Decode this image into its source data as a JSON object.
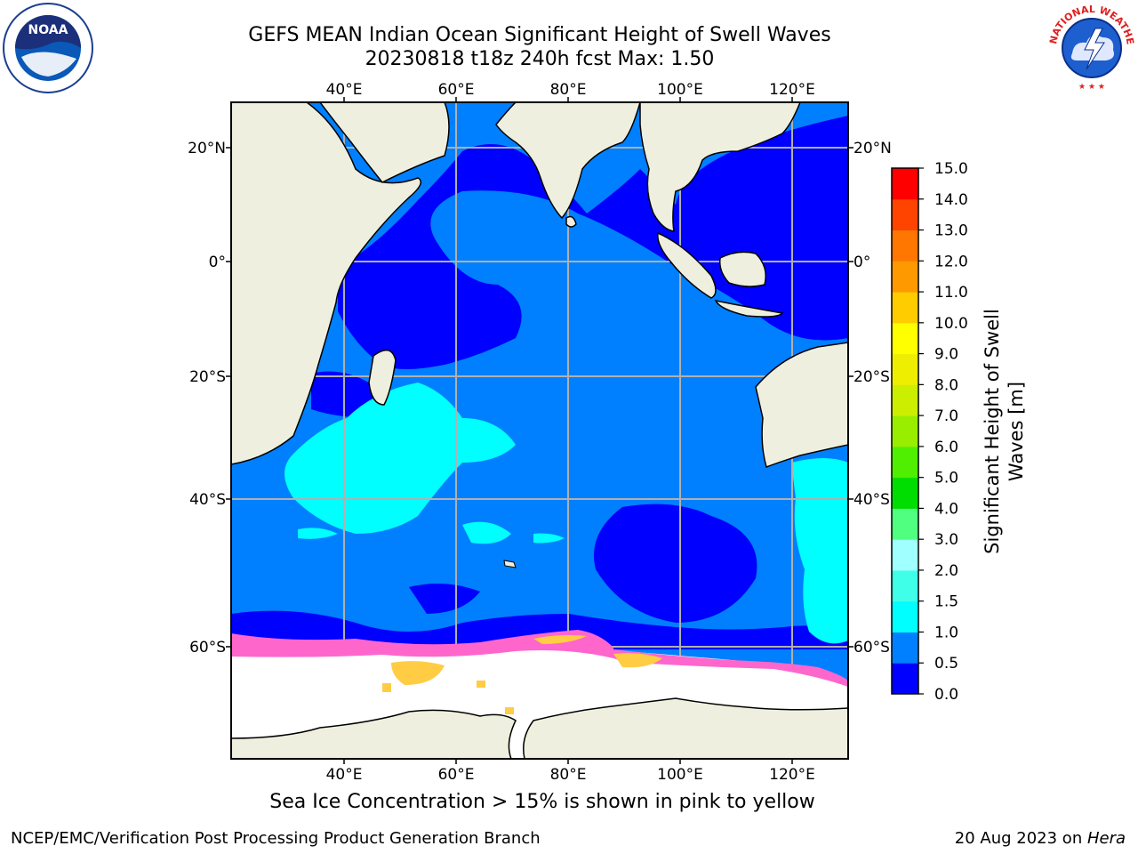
{
  "title": {
    "line1": "GEFS MEAN Indian Ocean Significant Height of Swell Waves",
    "line2": "20230818 t18z 240h fcst   Max: 1.50"
  },
  "logos": {
    "left": "noaa-logo",
    "right": "national-weather-service-logo",
    "left_text": "NOAA",
    "right_text": "NATIONAL WEATHER SERVICE"
  },
  "map": {
    "lon_labels": [
      "40°E",
      "60°E",
      "80°E",
      "100°E",
      "120°E"
    ],
    "lat_labels_left": [
      "20°N",
      "0°",
      "20°S",
      "40°S",
      "60°S"
    ],
    "lat_labels_right": [
      "20°N",
      "0°",
      "20°S",
      "40°S",
      "60°S"
    ],
    "colors": {
      "land": "#efefdf",
      "ocean_low": "#0000ff",
      "ocean_mid": "#0080ff",
      "ocean_high": "#00ffff",
      "ice": "#ffffff",
      "ice_edge_pink": "#ff66cc",
      "ice_edge_yellow": "#ffcc44",
      "grid": "#b0b0b0"
    }
  },
  "colorbar": {
    "title_line1": "Significant Height of Swell",
    "title_line2": "Waves [m]",
    "tick_labels": [
      "0.0",
      "0.5",
      "1.0",
      "1.5",
      "2.0",
      "3.0",
      "4.0",
      "5.0",
      "6.0",
      "7.0",
      "8.0",
      "9.0",
      "10.0",
      "11.0",
      "12.0",
      "13.0",
      "14.0",
      "15.0"
    ],
    "colors": [
      "#0000ff",
      "#0080ff",
      "#00ffff",
      "#40ffe8",
      "#a0ffff",
      "#50ff80",
      "#00dd00",
      "#50ee00",
      "#99ee00",
      "#ccee00",
      "#eeee00",
      "#ffff00",
      "#ffcc00",
      "#ff9900",
      "#ff7700",
      "#ff4400",
      "#ff0000"
    ]
  },
  "note": "Sea Ice Concentration > 15% is shown in pink to yellow",
  "credit_left": "NCEP/EMC/Verification Post Processing Product Generation Branch",
  "credit_right_date": "20 Aug 2023 on ",
  "credit_right_host": "Hera"
}
